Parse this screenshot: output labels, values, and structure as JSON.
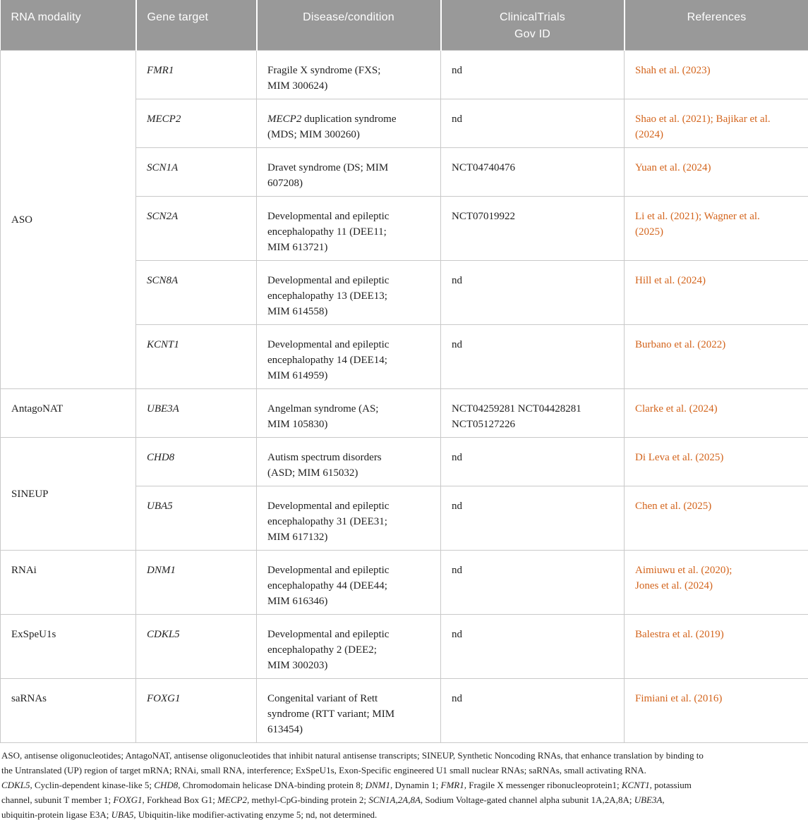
{
  "colors": {
    "header_bg": "#999999",
    "header_text": "#ffffff",
    "border": "#c9c9c9",
    "body_text": "#1f1f1f",
    "reference_link": "#d3641c"
  },
  "table": {
    "columns": [
      "RNA modality",
      "Gene target",
      "Disease/condition",
      "ClinicalTrials\nGov ID",
      "References"
    ],
    "groups": [
      {
        "modality": "ASO",
        "rows": [
          {
            "gene": "FMR1",
            "disease_italic": "",
            "disease": "Fragile X syndrome (FXS;\nMIM 300624)",
            "nct": "nd",
            "refs": "Shah et al. (2023)"
          },
          {
            "gene": "MECP2",
            "disease_italic": "MECP2",
            "disease": " duplication syndrome\n(MDS; MIM 300260)",
            "nct": "nd",
            "refs": "Shao et al. (2021); Bajikar et al.\n(2024)"
          },
          {
            "gene": "SCN1A",
            "disease_italic": "",
            "disease": "Dravet syndrome (DS; MIM\n607208)",
            "nct": "NCT04740476",
            "refs": "Yuan et al. (2024)"
          },
          {
            "gene": "SCN2A",
            "disease_italic": "",
            "disease": "Developmental and epileptic\nencephalopathy 11 (DEE11;\nMIM 613721)",
            "nct": "NCT07019922",
            "refs": "Li et al. (2021); Wagner et al.\n(2025)"
          },
          {
            "gene": "SCN8A",
            "disease_italic": "",
            "disease": "Developmental and epileptic\nencephalopathy 13 (DEE13;\nMIM 614558)",
            "nct": "nd",
            "refs": "Hill et al. (2024)"
          },
          {
            "gene": "KCNT1",
            "disease_italic": "",
            "disease": "Developmental and epileptic\nencephalopathy 14 (DEE14;\nMIM 614959)",
            "nct": "nd",
            "refs": "Burbano et al. (2022)"
          }
        ]
      },
      {
        "modality": "AntagoNAT",
        "rows": [
          {
            "gene": "UBE3A",
            "disease_italic": "",
            "disease": "Angelman syndrome (AS;\nMIM 105830)",
            "nct": "NCT04259281 NCT04428281\nNCT05127226",
            "refs": "Clarke et al. (2024)"
          }
        ]
      },
      {
        "modality": "SINEUP",
        "rows": [
          {
            "gene": "CHD8",
            "disease_italic": "",
            "disease": "Autism spectrum disorders\n(ASD; MIM 615032)",
            "nct": "nd",
            "refs": "Di Leva et al. (2025)"
          },
          {
            "gene": "UBA5",
            "disease_italic": "",
            "disease": "Developmental and epileptic\nencephalopathy 31 (DEE31;\nMIM 617132)",
            "nct": "nd",
            "refs": "Chen et al. (2025)"
          }
        ]
      },
      {
        "modality": "RNAi",
        "rows": [
          {
            "gene": "DNM1",
            "disease_italic": "",
            "disease": "Developmental and epileptic\nencephalopathy 44 (DEE44;\nMIM 616346)",
            "nct": "nd",
            "refs": "Aimiuwu et al. (2020);\nJones et al. (2024)"
          }
        ]
      },
      {
        "modality": "ExSpeU1s",
        "rows": [
          {
            "gene": "CDKL5",
            "disease_italic": "",
            "disease": "Developmental and epileptic\nencephalopathy 2 (DEE2;\nMIM 300203)",
            "nct": "nd",
            "refs": "Balestra et al. (2019)"
          }
        ]
      },
      {
        "modality": "saRNAs",
        "rows": [
          {
            "gene": "FOXG1",
            "disease_italic": "",
            "disease": "Congenital variant of Rett\nsyndrome (RTT variant; MIM\n613454)",
            "nct": "nd",
            "refs": "Fimiani et al. (2016)"
          }
        ]
      }
    ]
  },
  "footer": {
    "paragraphs": [
      [
        {
          "t": "ASO, antisense oligonucleotides; AntagoNAT, antisense oligonucleotides that inhibit natural antisense transcripts; SINEUP, Synthetic Noncoding RNAs, that enhance translation by binding to\nthe Untranslated (UP) region of target mRNA; RNAi, small RNA, interference; ExSpeU1s, Exon-Specific engineered U1 small nuclear RNAs; saRNAs, small activating RNA.",
          "i": false
        }
      ],
      [
        {
          "t": "CDKL5,",
          "i": true
        },
        {
          "t": " Cyclin-dependent kinase-like 5; ",
          "i": false
        },
        {
          "t": "CHD8,",
          "i": true
        },
        {
          "t": " Chromodomain helicase DNA-binding protein 8; ",
          "i": false
        },
        {
          "t": "DNM1,",
          "i": true
        },
        {
          "t": " Dynamin 1; ",
          "i": false
        },
        {
          "t": "FMR1,",
          "i": true
        },
        {
          "t": " Fragile X messenger ribonucleoprotein1; ",
          "i": false
        },
        {
          "t": "KCNT1,",
          "i": true
        },
        {
          "t": " potassium\nchannel, subunit T member 1; ",
          "i": false
        },
        {
          "t": "FOXG1,",
          "i": true
        },
        {
          "t": " Forkhead Box G1; ",
          "i": false
        },
        {
          "t": "MECP2,",
          "i": true
        },
        {
          "t": " methyl-CpG-binding protein 2; ",
          "i": false
        },
        {
          "t": "SCN1A,2A,8A,",
          "i": true
        },
        {
          "t": " Sodium Voltage-gated channel alpha subunit 1A,2A,8A; ",
          "i": false
        },
        {
          "t": "UBE3A,",
          "i": true
        },
        {
          "t": "\nubiquitin-protein ligase E3A; ",
          "i": false
        },
        {
          "t": "UBA5,",
          "i": true
        },
        {
          "t": " Ubiquitin-like modifier-activating enzyme 5; nd, not determined.",
          "i": false
        }
      ]
    ]
  }
}
